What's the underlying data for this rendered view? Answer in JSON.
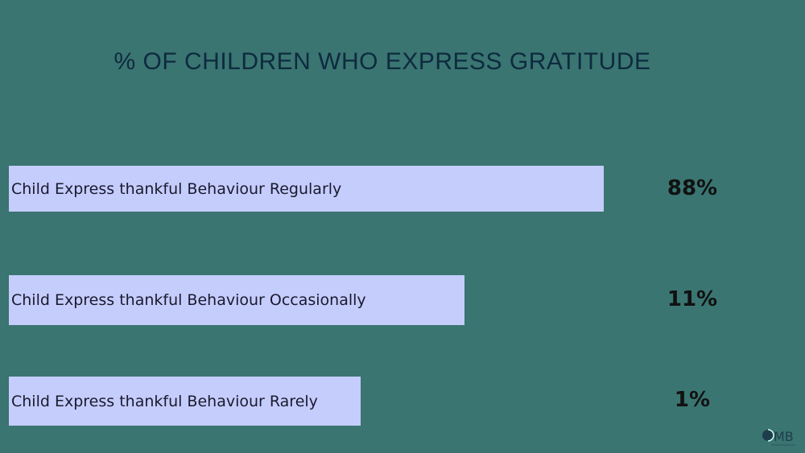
{
  "chart_data": {
    "type": "bar",
    "title": "% OF CHILDREN WHO EXPRESS GRATITUDE",
    "categories": [
      "Child Express thankful Behaviour Regularly",
      "Child Express thankful Behaviour Occasionally",
      "Child Express thankful Behaviour Rarely"
    ],
    "values": [
      88,
      11,
      1
    ],
    "value_labels": [
      "88%",
      "11%",
      "1%"
    ],
    "colors": {
      "background": "#3a7571",
      "bar": "#c5cdfd",
      "title": "#0e2a40"
    }
  },
  "logo": "MB"
}
